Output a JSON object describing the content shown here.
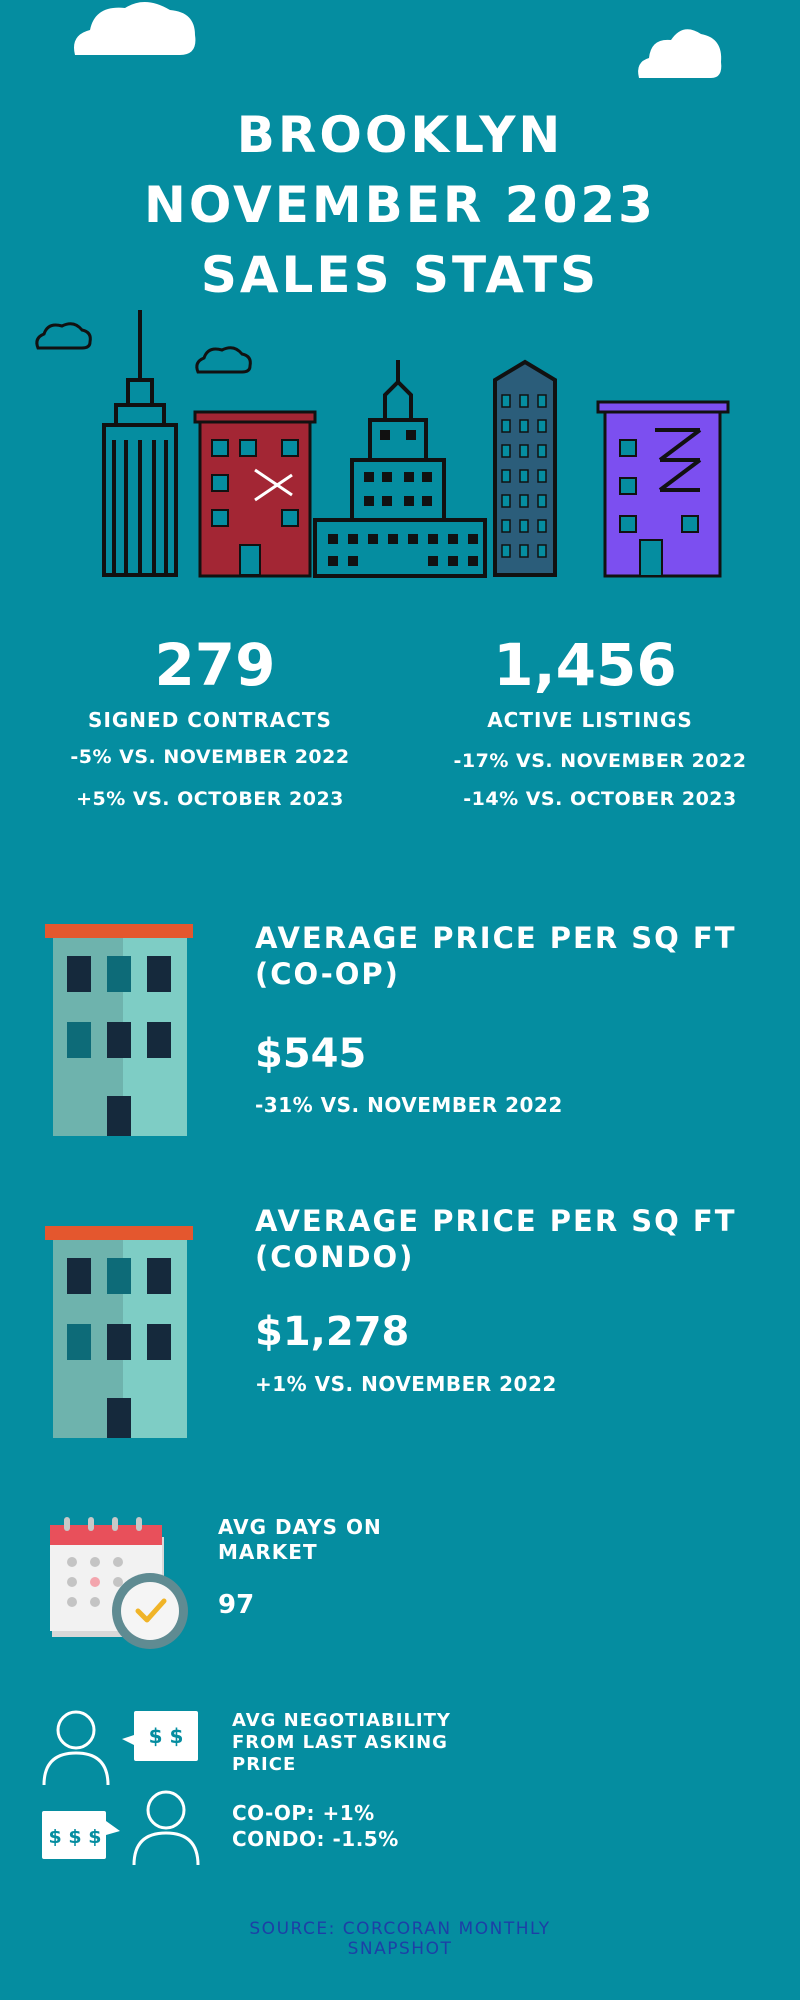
{
  "header": {
    "title_lines": [
      "BROOKLYN",
      "NOVEMBER 2023",
      "SALES STATS"
    ]
  },
  "contracts": {
    "value": "279",
    "label": "SIGNED CONTRACTS",
    "vs_last_year": "-5% VS. NOVEMBER 2022",
    "vs_last_month": "+5% VS. OCTOBER 2023"
  },
  "listings": {
    "value": "1,456",
    "label": "ACTIVE LISTINGS",
    "vs_last_year": "-17% VS. NOVEMBER 2022",
    "vs_last_month": "-14% VS. OCTOBER 2023"
  },
  "coop_price": {
    "title_lines": [
      "AVERAGE PRICE PER SQ FT",
      "(CO-OP)"
    ],
    "value": "$545",
    "change": "-31% VS. NOVEMBER 2022"
  },
  "condo_price": {
    "title_lines": [
      "AVERAGE PRICE PER SQ FT",
      "(CONDO)"
    ],
    "value": "$1,278",
    "change": "+1% VS. NOVEMBER 2022"
  },
  "days_on_market": {
    "title_lines": [
      "AVG DAYS ON",
      "MARKET"
    ],
    "value": "97"
  },
  "negotiability": {
    "title_lines": [
      "AVG NEGOTIABILITY",
      "FROM LAST ASKING",
      "PRICE"
    ],
    "coop": "CO-OP: +1%",
    "condo": "CONDO: -1.5%",
    "bubble_top": "$ $",
    "bubble_bottom": "$ $ $"
  },
  "source": {
    "lines": [
      "SOURCE: CORCORAN MONTHLY",
      "SNAPSHOT"
    ]
  },
  "colors": {
    "background": "#058da0",
    "red_building": "#a32634",
    "purple_building": "#7c4ff0",
    "source_text": "#1d3fa6"
  }
}
